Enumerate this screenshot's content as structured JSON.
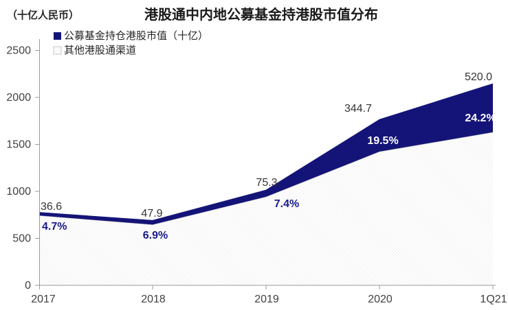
{
  "chart_data": {
    "type": "area",
    "stacked": true,
    "title": "港股通中内地公募基金持港股市值分布",
    "unit_label": "（十亿人民币）",
    "categories": [
      "2017",
      "2018",
      "2019",
      "2020",
      "1Q21"
    ],
    "series": [
      {
        "name": "公募基金持仓港股市值（十亿）",
        "values": [
          36.6,
          47.9,
          75.3,
          344.7,
          520.0
        ],
        "value_labels": [
          "36.6",
          "47.9",
          "75.3",
          "344.7",
          "520.0"
        ],
        "pct_labels": [
          "4.7%",
          "6.9%",
          "7.4%",
          "19.5%",
          "24.2%"
        ],
        "color": "#141478",
        "label_color": "#1a1a8c"
      },
      {
        "name": "其他港股通渠道",
        "style": "diagonal-hatch",
        "hatch_line_color": "#e2e2e2",
        "values_estimated": [
          742,
          646,
          942,
          1423,
          1629
        ]
      }
    ],
    "totals_estimated": [
      778.6,
      693.9,
      1017.3,
      1767.7,
      2149.0
    ],
    "ylim": [
      0,
      2500
    ],
    "yticks": [
      0,
      500,
      1000,
      1500,
      2000,
      2500
    ],
    "ytick_labels": [
      "0",
      "500",
      "1000",
      "1500",
      "2000",
      "2500"
    ],
    "grid": false,
    "legend_position": "top-left",
    "axis_color": "#999999"
  }
}
